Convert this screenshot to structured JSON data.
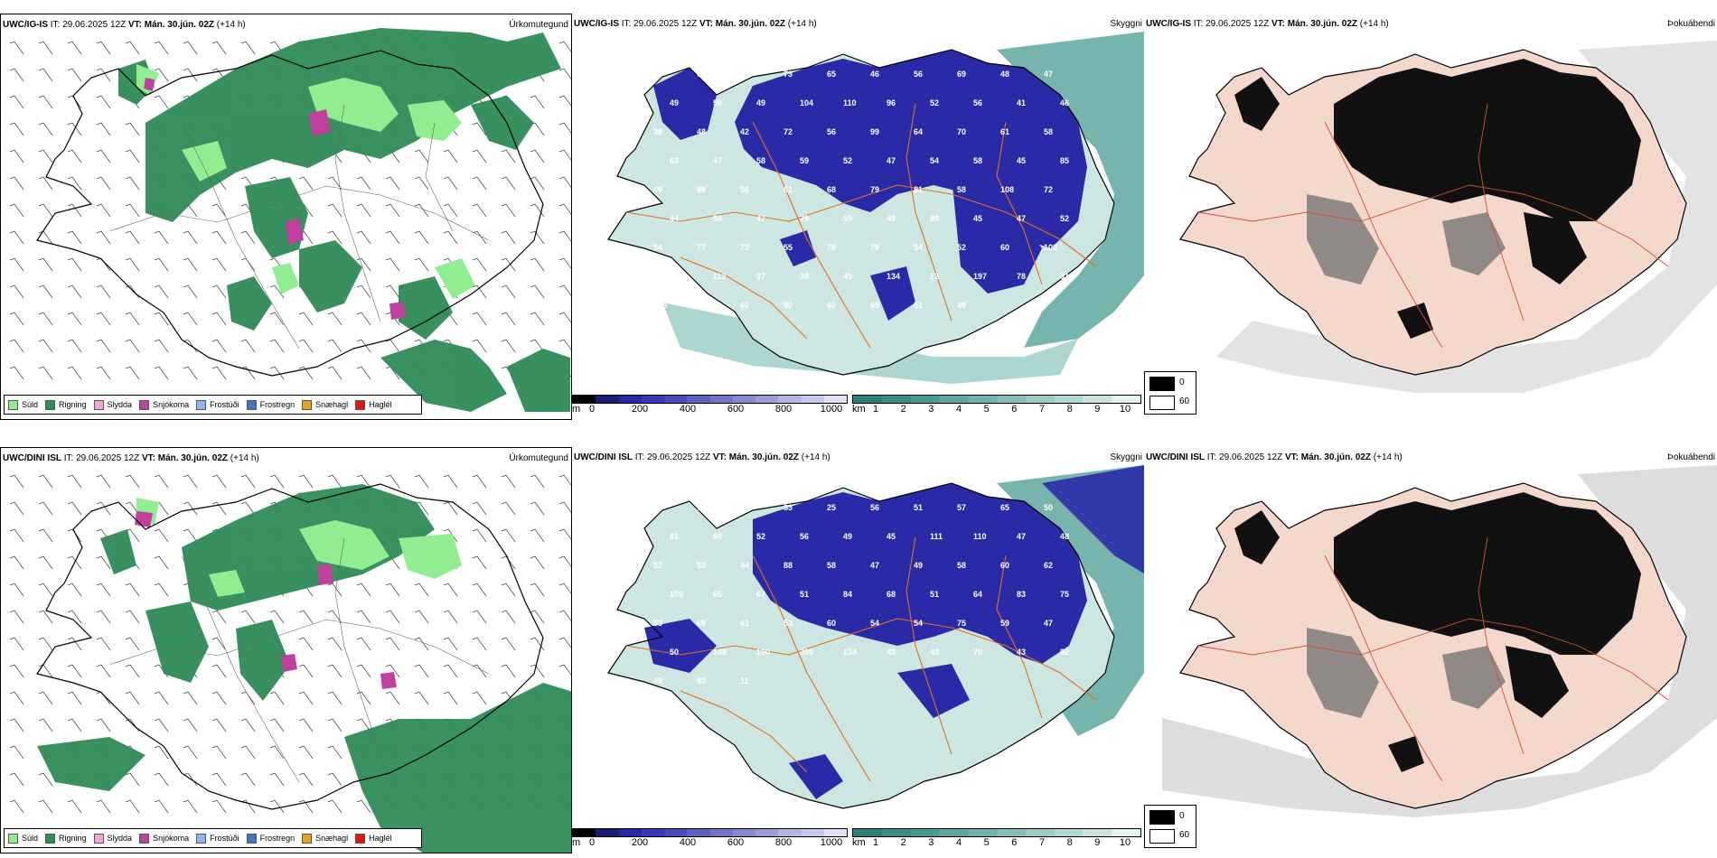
{
  "rows": [
    {
      "model": "UWC/IG-IS",
      "it": "IT: 29.06.2025 12Z",
      "vt_label": "VT:",
      "vt": "Mán. 30.jún. 02Z",
      "lead": "(+14 h)"
    },
    {
      "model": "UWC/DINI ISL",
      "it": "IT: 29.06.2025 12Z",
      "vt_label": "VT:",
      "vt": "Mán. 30.jún. 02Z",
      "lead": "(+14 h)"
    }
  ],
  "panel_titles": {
    "precip": "Úrkomutegund",
    "visibility": "Skyggni",
    "fog": "Þokuábendi"
  },
  "precip_legend": [
    {
      "label": "Súld",
      "color": "#90ee90"
    },
    {
      "label": "Rigning",
      "color": "#2e8b57"
    },
    {
      "label": "Slydda",
      "color": "#f4a6d7"
    },
    {
      "label": "Snjókoma",
      "color": "#c040a0"
    },
    {
      "label": "Frostúði",
      "color": "#87b8f0"
    },
    {
      "label": "Frostregn",
      "color": "#3a78c8"
    },
    {
      "label": "Snæhagl",
      "color": "#f0a020"
    },
    {
      "label": "Haglél",
      "color": "#e81010"
    }
  ],
  "height_bar": {
    "unit": "m",
    "ticks": [
      "0",
      "200",
      "400",
      "600",
      "800",
      "1000"
    ],
    "colors": [
      "#000000",
      "#1a1a7a",
      "#2a2a9a",
      "#3838b0",
      "#4a4ab8",
      "#5e5ec0",
      "#7272c8",
      "#8888d0",
      "#9c9cd8",
      "#b4b4e0",
      "#c8c8ea",
      "#e0e0f4"
    ]
  },
  "vis_bar": {
    "unit": "km",
    "ticks": [
      "1",
      "2",
      "3",
      "4",
      "5",
      "6",
      "7",
      "8",
      "9",
      "10"
    ],
    "colors": [
      "#2e7f7a",
      "#3a8c86",
      "#4a9a94",
      "#5ca6a0",
      "#70b2ac",
      "#86beb8",
      "#9ccac4",
      "#b4d8d2",
      "#cce4e0",
      "#e4f2f0"
    ]
  },
  "fog_legend": [
    "0",
    "60"
  ],
  "labels_ig": [
    "80",
    "63",
    "90",
    "73",
    "65",
    "46",
    "56",
    "69",
    "48",
    "47",
    "49",
    "50",
    "49",
    "104",
    "110",
    "96",
    "52",
    "56",
    "41",
    "46",
    "38",
    "48",
    "42",
    "72",
    "56",
    "99",
    "64",
    "70",
    "61",
    "58",
    "63",
    "47",
    "58",
    "59",
    "52",
    "47",
    "54",
    "58",
    "45",
    "85",
    "49",
    "89",
    "56",
    "61",
    "68",
    "79",
    "81",
    "58",
    "108",
    "72",
    "44",
    "58",
    "47",
    "79",
    "59",
    "49",
    "89",
    "45",
    "47",
    "52",
    "54",
    "77",
    "73",
    "55",
    "78",
    "79",
    "54",
    "52",
    "60",
    "103",
    "102",
    "112",
    "97",
    "38",
    "45",
    "134",
    "12",
    "197",
    "78",
    "318",
    "815",
    "40",
    "60",
    "80",
    "60",
    "69",
    "51",
    "49"
  ],
  "labels_dini": [
    "68",
    "73",
    "21",
    "33",
    "25",
    "56",
    "51",
    "57",
    "65",
    "50",
    "81",
    "60",
    "52",
    "56",
    "49",
    "45",
    "111",
    "110",
    "47",
    "48",
    "52",
    "53",
    "44",
    "88",
    "58",
    "47",
    "49",
    "58",
    "60",
    "62",
    "100",
    "65",
    "67",
    "51",
    "84",
    "68",
    "51",
    "64",
    "83",
    "75",
    "53",
    "69",
    "61",
    "53",
    "60",
    "54",
    "54",
    "75",
    "59",
    "47",
    "50",
    "148",
    "190",
    "305",
    "134",
    "43",
    "43",
    "70",
    "43",
    "82",
    "49",
    "83",
    "11"
  ]
}
